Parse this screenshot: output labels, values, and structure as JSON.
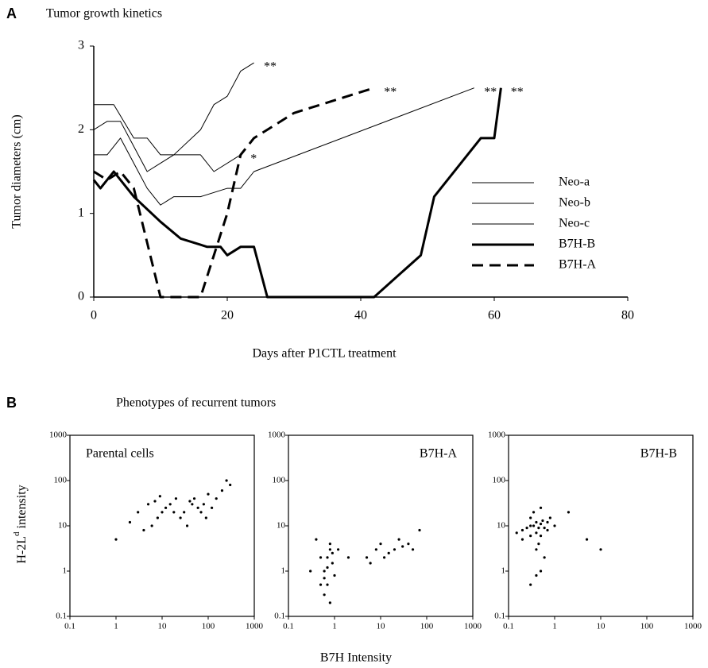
{
  "chart_data": [
    {
      "type": "line",
      "panel_label": "A",
      "title": "Tumor growth kinetics",
      "x_label": "Days after P1CTL treatment",
      "y_label": "Tumor diameters (cm)",
      "xlim": [
        0,
        80
      ],
      "xticks": [
        0,
        20,
        40,
        60,
        80
      ],
      "ylim": [
        0,
        3
      ],
      "yticks": [
        0,
        1,
        2,
        3
      ],
      "legend": "right",
      "series": [
        {
          "name": "Neo-a",
          "color": "#000000",
          "width": 1,
          "dashed": false,
          "x": [
            0,
            2,
            4,
            6,
            8,
            10,
            12,
            16,
            18,
            20,
            22,
            24
          ],
          "y": [
            2.0,
            2.1,
            2.1,
            1.8,
            1.5,
            1.6,
            1.7,
            2.0,
            2.3,
            2.4,
            2.7,
            2.8
          ]
        },
        {
          "name": "Neo-b",
          "color": "#000000",
          "width": 1,
          "dashed": false,
          "x": [
            0,
            2,
            4,
            6,
            8,
            10,
            12,
            16,
            20,
            22,
            24,
            57
          ],
          "y": [
            1.7,
            1.7,
            1.9,
            1.6,
            1.3,
            1.1,
            1.2,
            1.2,
            1.3,
            1.3,
            1.5,
            2.5
          ]
        },
        {
          "name": "Neo-c",
          "color": "#000000",
          "width": 1,
          "dashed": false,
          "x": [
            0,
            3,
            6,
            8,
            10,
            16,
            18,
            22
          ],
          "y": [
            2.3,
            2.3,
            1.9,
            1.9,
            1.7,
            1.7,
            1.5,
            1.7
          ]
        },
        {
          "name": "B7H-B",
          "color": "#000000",
          "width": 3,
          "dashed": false,
          "x": [
            0,
            1,
            3,
            6,
            10,
            13,
            17,
            19,
            20,
            22,
            24,
            26,
            42,
            49,
            51,
            58,
            60,
            61
          ],
          "y": [
            1.4,
            1.3,
            1.5,
            1.2,
            0.9,
            0.7,
            0.6,
            0.6,
            0.5,
            0.6,
            0.6,
            0,
            0,
            0.5,
            1.2,
            1.9,
            1.9,
            2.5
          ]
        },
        {
          "name": "B7H-A",
          "color": "#000000",
          "width": 3,
          "dashed": true,
          "x": [
            0,
            2,
            4,
            6,
            10,
            16,
            20,
            22,
            24,
            30,
            42
          ],
          "y": [
            1.5,
            1.4,
            1.5,
            1.3,
            0,
            0,
            1.0,
            1.7,
            1.9,
            2.2,
            2.5
          ]
        }
      ],
      "annotations": [
        {
          "text": "**",
          "x": 25,
          "y": 2.8
        },
        {
          "text": "**",
          "x": 43,
          "y": 2.5
        },
        {
          "text": "**",
          "x": 58,
          "y": 2.5
        },
        {
          "text": "**",
          "x": 62,
          "y": 2.5
        },
        {
          "text": "*",
          "x": 23,
          "y": 1.7
        }
      ]
    },
    {
      "type": "scatter",
      "panel_label": "B",
      "title": "Phenotypes of recurrent tumors",
      "x_label": "B7H Intensity",
      "y_label": {
        "main": "H-2L",
        "sup": "d",
        "rest": " intensity"
      },
      "log_scale": true,
      "xlim": [
        0.1,
        1000
      ],
      "ylim": [
        0.1,
        1000
      ],
      "xticks": [
        0.1,
        1,
        10,
        100,
        1000
      ],
      "yticks": [
        0.1,
        1,
        10,
        100,
        1000
      ],
      "panels": [
        {
          "name": "Parental cells",
          "color": "#000000",
          "x": [
            3,
            5,
            8,
            12,
            20,
            30,
            40,
            60,
            80,
            100,
            150,
            200,
            6,
            10,
            15,
            25,
            50,
            70,
            120,
            4,
            2,
            1,
            300,
            9,
            35,
            45,
            18,
            7,
            90,
            250
          ],
          "y": [
            20,
            30,
            15,
            25,
            40,
            20,
            35,
            25,
            30,
            50,
            40,
            60,
            10,
            20,
            30,
            15,
            40,
            20,
            25,
            8,
            12,
            5,
            80,
            45,
            10,
            30,
            20,
            35,
            15,
            100
          ]
        },
        {
          "name": "B7H-A",
          "color": "#000000",
          "x": [
            0.5,
            0.6,
            0.7,
            0.8,
            0.9,
            1,
            0.6,
            0.7,
            0.8,
            0.5,
            0.9,
            0.7,
            0.8,
            0.6,
            1.2,
            5,
            8,
            10,
            15,
            20,
            30,
            40,
            6,
            12,
            25,
            50,
            0.4,
            0.3,
            2,
            70
          ],
          "y": [
            0.5,
            1,
            2,
            3,
            1.5,
            0.8,
            0.3,
            0.5,
            4,
            2,
            2.5,
            1.2,
            0.2,
            0.7,
            3,
            2,
            3,
            4,
            2.5,
            3,
            3.5,
            4,
            1.5,
            2,
            5,
            3,
            5,
            1,
            2,
            8
          ]
        },
        {
          "name": "B7H-B",
          "color": "#000000",
          "x": [
            0.2,
            0.3,
            0.4,
            0.5,
            0.6,
            0.3,
            0.4,
            0.5,
            0.2,
            0.7,
            0.35,
            0.45,
            0.25,
            0.55,
            0.4,
            0.3,
            0.5,
            0.6,
            0.8,
            1,
            0.15,
            0.4,
            0.3,
            2,
            5,
            0.5,
            0.35,
            0.45,
            0.7,
            10
          ],
          "y": [
            8,
            10,
            12,
            6,
            9,
            15,
            7,
            11,
            5,
            8,
            20,
            4,
            9,
            13,
            3,
            6,
            1,
            2,
            15,
            10,
            7,
            0.8,
            0.5,
            20,
            5,
            25,
            10,
            9,
            12,
            3
          ]
        }
      ]
    }
  ]
}
